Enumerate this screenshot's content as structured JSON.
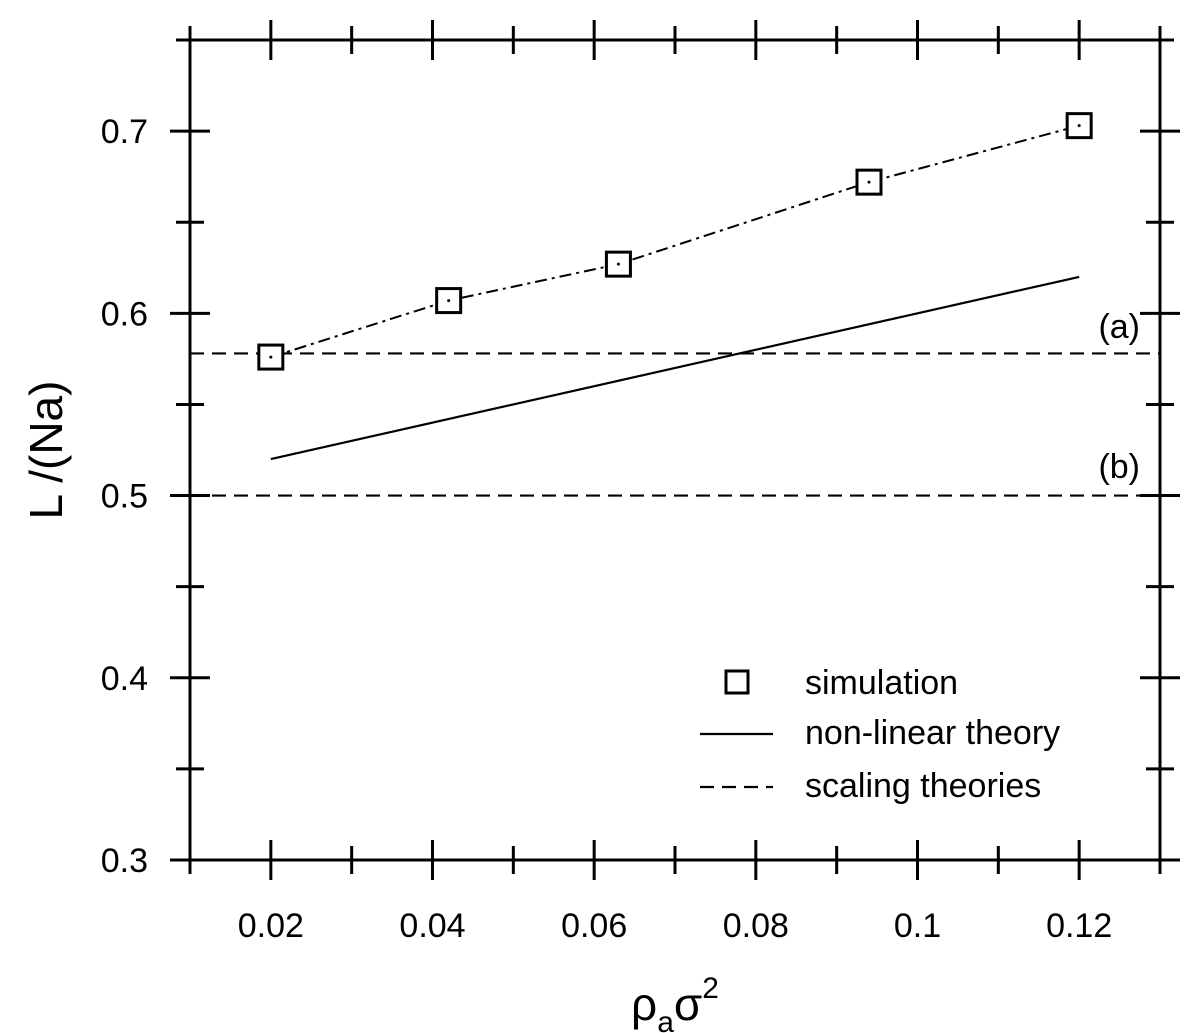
{
  "chart_data": {
    "type": "line",
    "xlabel": {
      "main": "ρ",
      "sub": "a",
      "mid": "σ",
      "sup": "2"
    },
    "ylabel": "L /(Na)",
    "xlim": [
      0.01,
      0.13
    ],
    "ylim": [
      0.3,
      0.75
    ],
    "xticks": [
      0.02,
      0.04,
      0.06,
      0.08,
      0.1,
      0.12
    ],
    "xtick_labels": [
      "0.02",
      "0.04",
      "0.06",
      "0.08",
      "0.1",
      "0.12"
    ],
    "yticks": [
      0.3,
      0.4,
      0.5,
      0.6,
      0.7
    ],
    "ytick_labels": [
      "0.3",
      "0.4",
      "0.5",
      "0.6",
      "0.7"
    ],
    "series": [
      {
        "name": "simulation",
        "style": "markers-dashdot",
        "marker": "open-square",
        "x": [
          0.02,
          0.042,
          0.063,
          0.094,
          0.12
        ],
        "y": [
          0.576,
          0.607,
          0.627,
          0.672,
          0.703
        ]
      },
      {
        "name": "non-linear theory",
        "style": "solid",
        "x": [
          0.02,
          0.12
        ],
        "y": [
          0.52,
          0.62
        ]
      },
      {
        "name": "scaling theories",
        "style": "dashed",
        "lines": [
          {
            "label": "(a)",
            "y": 0.578
          },
          {
            "label": "(b)",
            "y": 0.5
          }
        ]
      }
    ],
    "legend": {
      "position": "bottom-right",
      "entries": [
        "simulation",
        "non-linear theory",
        "scaling theories"
      ]
    },
    "grid": false,
    "colors": {
      "line": "#000000",
      "background": "#ffffff"
    }
  }
}
